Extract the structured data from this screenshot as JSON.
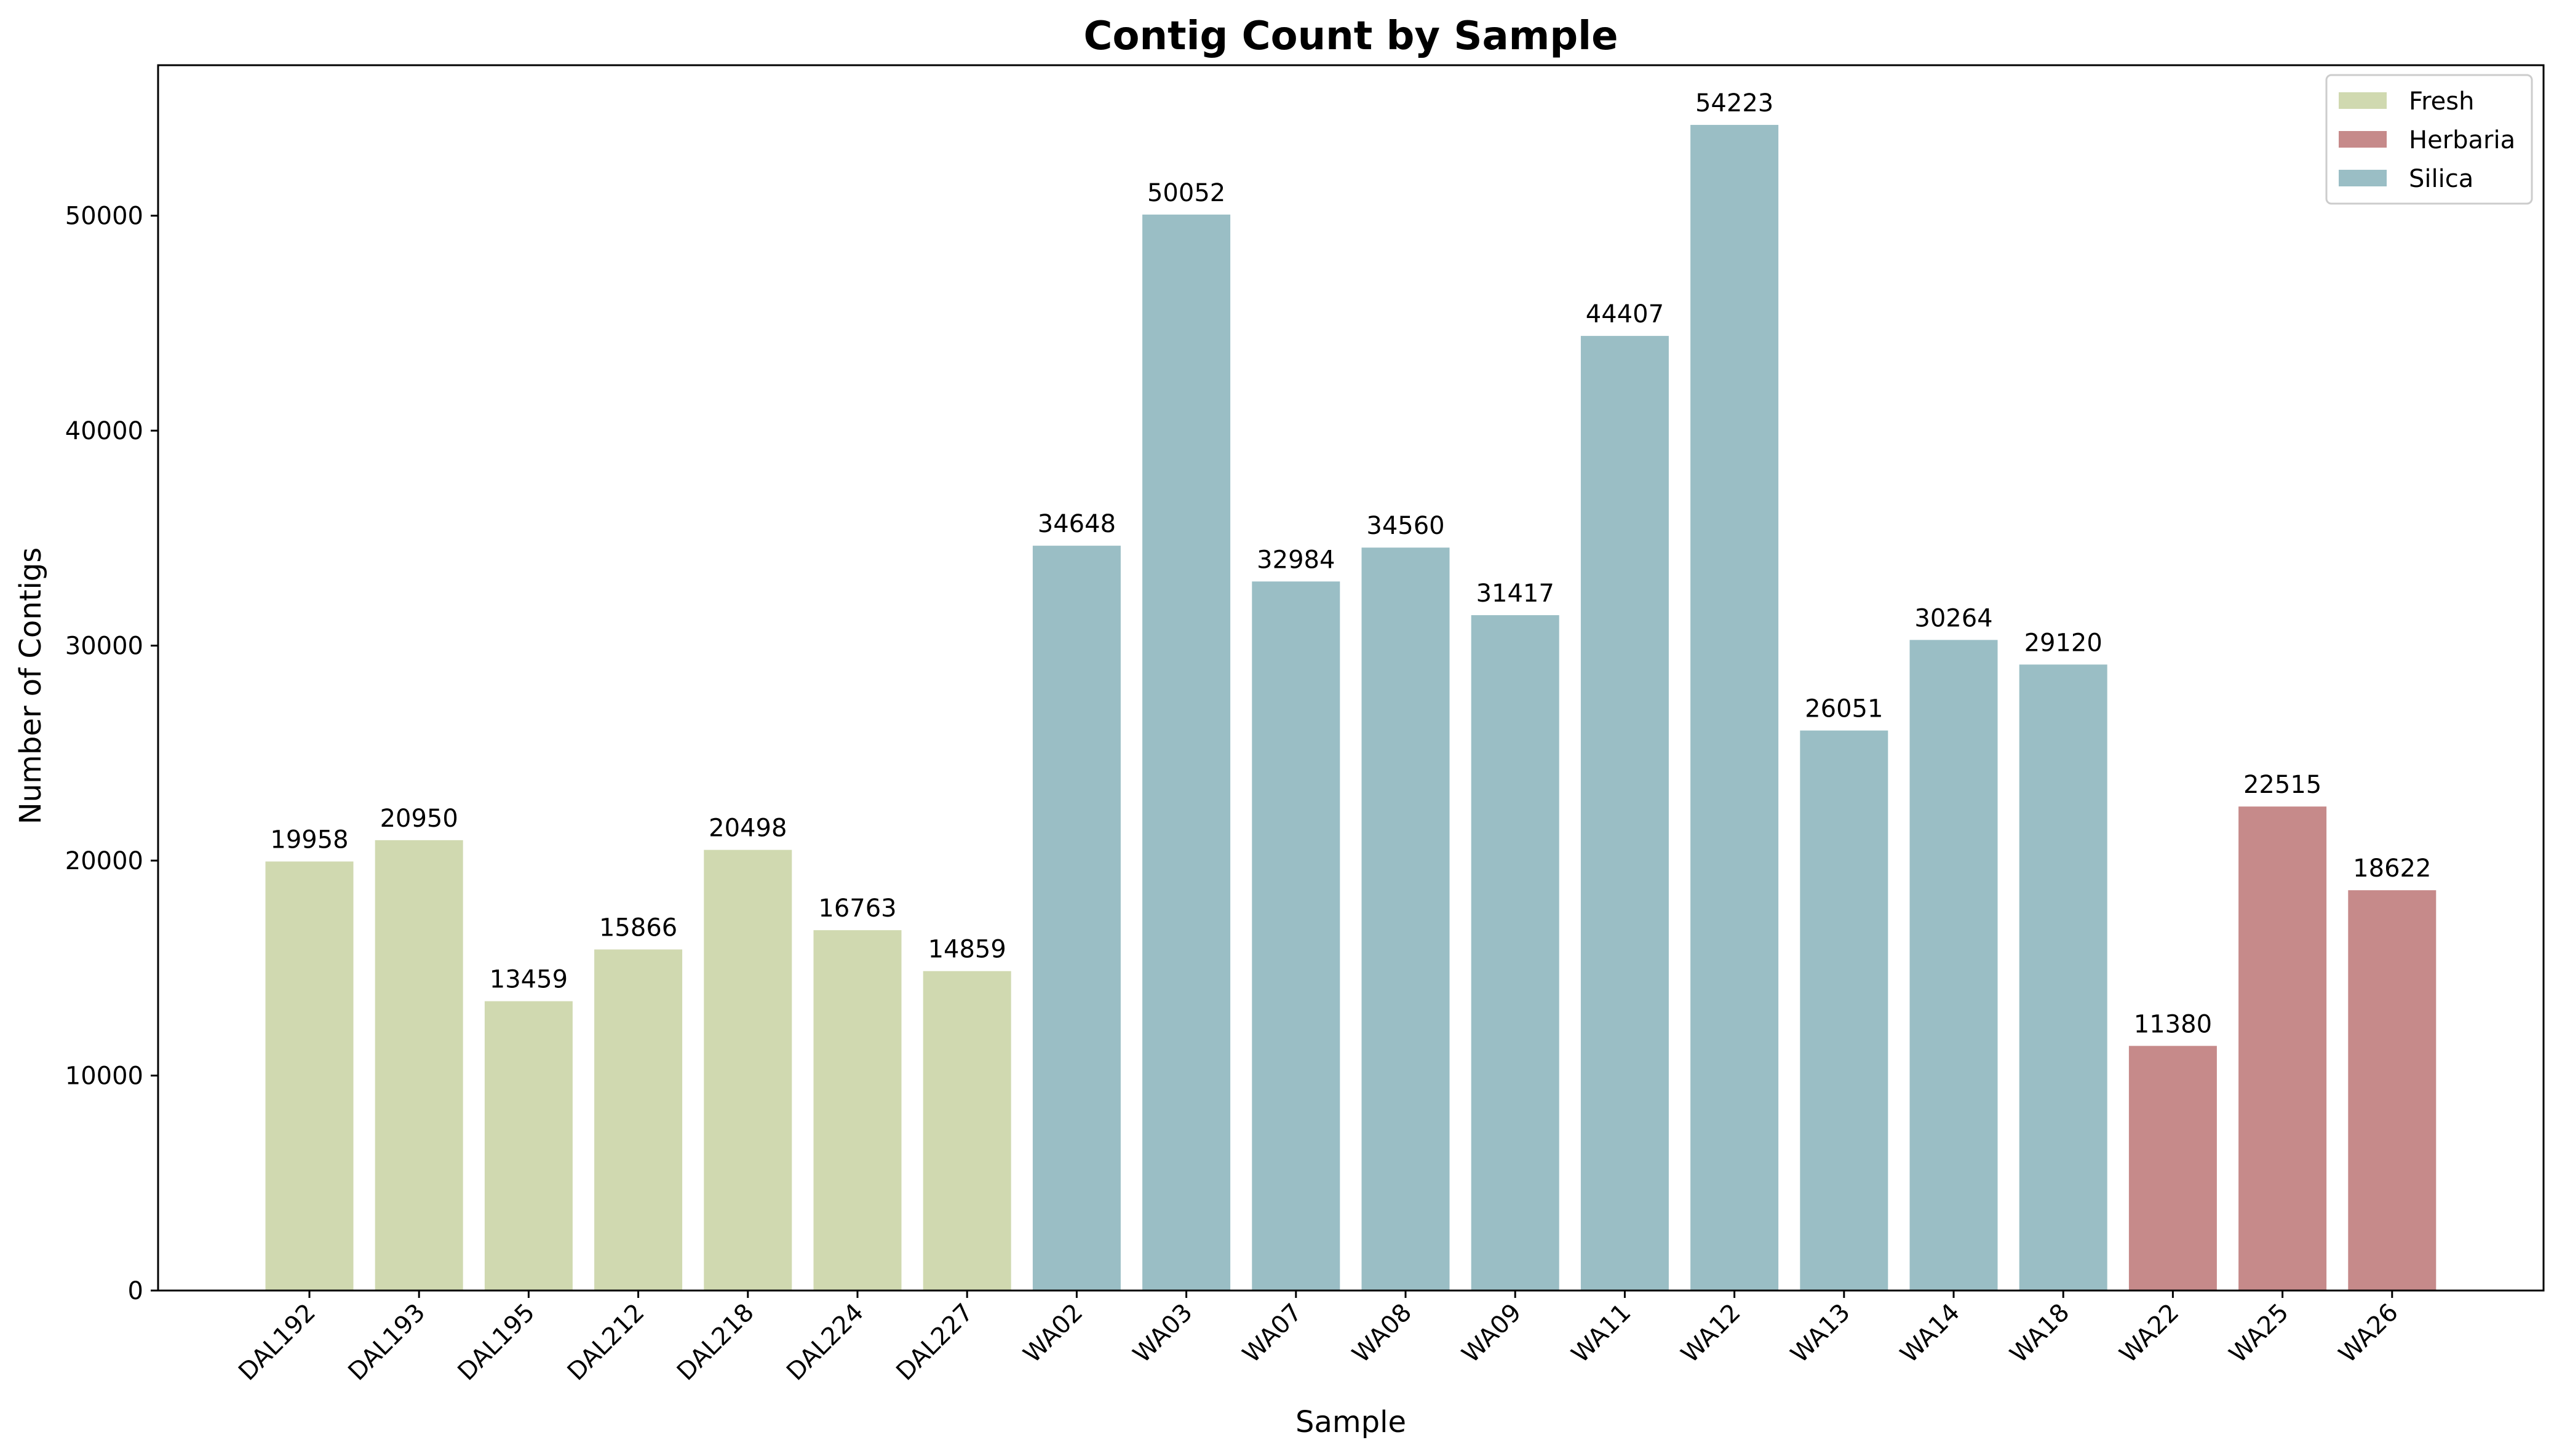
{
  "chart_data": {
    "type": "bar",
    "title": "Contig Count by Sample",
    "xlabel": "Sample",
    "ylabel": "Number of Contigs",
    "categories": [
      "DAL192",
      "DAL193",
      "DAL195",
      "DAL212",
      "DAL218",
      "DAL224",
      "DAL227",
      "WA02",
      "WA03",
      "WA07",
      "WA08",
      "WA09",
      "WA11",
      "WA12",
      "WA13",
      "WA14",
      "WA18",
      "WA22",
      "WA25",
      "WA26"
    ],
    "values": [
      19958,
      20950,
      13459,
      15866,
      20498,
      16763,
      14859,
      34648,
      50052,
      32984,
      34560,
      31417,
      44407,
      54223,
      26051,
      30264,
      29120,
      11380,
      22515,
      18622
    ],
    "groups": [
      "Fresh",
      "Fresh",
      "Fresh",
      "Fresh",
      "Fresh",
      "Fresh",
      "Fresh",
      "Silica",
      "Silica",
      "Silica",
      "Silica",
      "Silica",
      "Silica",
      "Silica",
      "Silica",
      "Silica",
      "Silica",
      "Herbaria",
      "Herbaria",
      "Herbaria"
    ],
    "legend": [
      {
        "name": "Fresh",
        "color": "#d0d9b0"
      },
      {
        "name": "Herbaria",
        "color": "#c68a8a"
      },
      {
        "name": "Silica",
        "color": "#9abec5"
      }
    ],
    "legend_position": "top-right",
    "ylim": [
      0,
      57000
    ],
    "yticks": [
      0,
      10000,
      20000,
      30000,
      40000,
      50000
    ],
    "grid": false
  }
}
